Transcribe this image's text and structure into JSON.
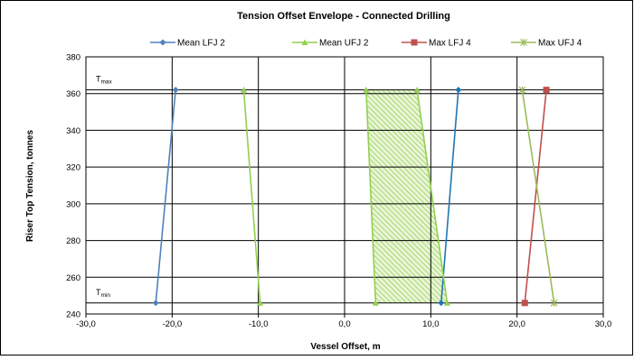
{
  "chart_data": {
    "type": "line",
    "title": "Tension Offset Envelope - Connected Drilling",
    "xlabel": "Vessel Offset, m",
    "ylabel": "Riser Top Tension, tonnes",
    "xlim": [
      -30,
      30
    ],
    "ylim": [
      240,
      380
    ],
    "x_ticks": [
      "-30,0",
      "-20,0",
      "-10,0",
      "0,0",
      "10,0",
      "20,0",
      "30,0"
    ],
    "y_ticks": [
      "240",
      "260",
      "280",
      "300",
      "320",
      "340",
      "360",
      "380"
    ],
    "grid": true,
    "legend_position": "top",
    "annotations": [
      {
        "text": "T",
        "sub": "max",
        "y": 362
      },
      {
        "text": "T",
        "sub": "min",
        "y": 246
      }
    ],
    "t_max": 362,
    "t_min": 246,
    "series": [
      {
        "name": "Mean LFJ 2",
        "color": "#4f81bd",
        "marker": "diamond",
        "points": [
          [
            -19.6,
            362
          ],
          [
            -21.9,
            246
          ]
        ]
      },
      {
        "name": "Mean LFJ 2",
        "legend": false,
        "color": "#1f77b4",
        "marker": "diamond",
        "points": [
          [
            13.2,
            362
          ],
          [
            11.2,
            246
          ]
        ]
      },
      {
        "name": "Mean UFJ 2",
        "color": "#92d050",
        "marker": "triangle",
        "points": [
          [
            -11.7,
            362
          ],
          [
            -9.8,
            246
          ]
        ]
      },
      {
        "name": "Mean UFJ 2",
        "legend": false,
        "color": "#92d050",
        "marker": "triangle",
        "points": [
          [
            2.5,
            362
          ],
          [
            3.6,
            246
          ]
        ]
      },
      {
        "name": "Mean UFJ 2",
        "legend": false,
        "color": "#92d050",
        "marker": "triangle",
        "points": [
          [
            8.4,
            362
          ],
          [
            11.9,
            246
          ]
        ]
      },
      {
        "name": "Max LFJ 4",
        "color": "#c0504d",
        "marker": "square",
        "points": [
          [
            23.4,
            362
          ],
          [
            20.9,
            246
          ]
        ]
      },
      {
        "name": "Max UFJ 4",
        "color": "#9bbb59",
        "marker": "star",
        "points": [
          [
            20.6,
            362
          ],
          [
            24.3,
            246
          ]
        ]
      }
    ],
    "envelope": {
      "fill": "#92d050",
      "points": [
        [
          2.5,
          362
        ],
        [
          8.4,
          362
        ],
        [
          11.9,
          246
        ],
        [
          3.6,
          246
        ]
      ]
    }
  }
}
